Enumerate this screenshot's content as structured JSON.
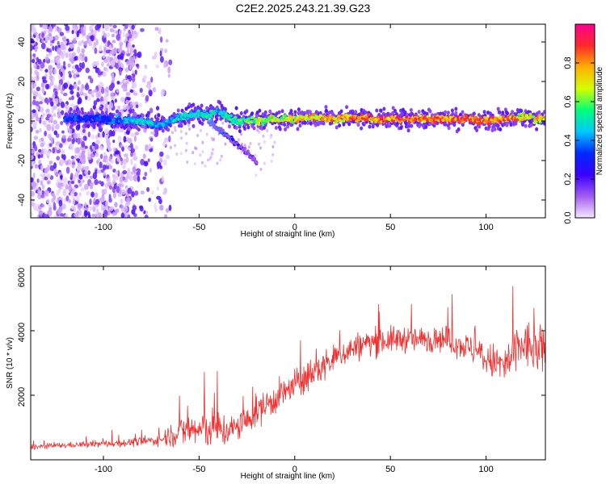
{
  "title": "C2E2.2025.243.21.39.G23",
  "colors": {
    "snr_line": "#f0302f",
    "spectrogram_low": "#e6d6ff",
    "spectrogram_mid": "#6a1ad8",
    "spectrogram_high": "#f81f3e",
    "frame": "#000000"
  },
  "chart_data": [
    {
      "type": "heatmap",
      "name": "spectrogram",
      "xlabel": "Height of straight line (km)",
      "ylabel": "Frequency (Hz)",
      "xlim": [
        -138,
        131
      ],
      "ylim": [
        -49,
        49
      ],
      "xticks": [
        -100,
        -50,
        0,
        50,
        100
      ],
      "yticks": [
        -40,
        -20,
        0,
        20,
        40
      ],
      "colorbar": {
        "label": "Normalized spectral amplitude",
        "range": [
          0,
          1
        ],
        "ticks": [
          0.0,
          0.2,
          0.4,
          0.6,
          0.8
        ],
        "colormap": [
          "#f5e8ff",
          "#a35cf0",
          "#3a00ff",
          "#0028ff",
          "#00c8ff",
          "#00ff7a",
          "#d4ff00",
          "#ffb000",
          "#ff2a2a",
          "#ff0090"
        ]
      },
      "ridge": {
        "description": "main signal track near 0 Hz",
        "x": [
          -100,
          -90,
          -80,
          -70,
          -60,
          -50,
          -45,
          -40,
          -35,
          -30,
          -20,
          -10,
          0,
          10,
          20,
          30,
          40,
          50,
          60,
          70,
          80,
          90,
          100,
          110,
          120,
          130
        ],
        "frequency": [
          1,
          0,
          0,
          -2,
          2,
          4,
          3,
          5,
          2,
          0,
          0,
          1,
          1,
          2,
          1,
          2,
          1,
          1,
          1,
          1,
          1,
          1,
          0,
          1,
          2,
          1
        ],
        "amplitude": [
          0.35,
          0.45,
          0.5,
          0.45,
          0.5,
          0.5,
          0.55,
          0.5,
          0.55,
          0.6,
          0.65,
          0.7,
          0.75,
          0.8,
          0.82,
          0.85,
          0.85,
          0.88,
          0.9,
          0.9,
          0.92,
          0.92,
          0.88,
          0.85,
          0.8,
          0.75
        ]
      },
      "branch": {
        "description": "secondary descending track",
        "x": [
          -45,
          -40,
          -35,
          -30,
          -25,
          -20
        ],
        "frequency": [
          0,
          -4,
          -8,
          -12,
          -16,
          -21
        ],
        "amplitude": [
          0.45,
          0.4,
          0.35,
          0.25,
          0.2,
          0.15
        ]
      },
      "noise_region": {
        "x_range": [
          -138,
          -65
        ],
        "density": "high"
      }
    },
    {
      "type": "line",
      "name": "snr",
      "xlabel": "Height of straight line (km)",
      "ylabel": "SNR (10 * v/v)",
      "xlim": [
        -138,
        131
      ],
      "ylim": [
        0,
        6000
      ],
      "xticks": [
        -100,
        -50,
        0,
        50,
        100
      ],
      "yticks": [
        2000,
        4000,
        6000
      ],
      "series": [
        {
          "name": "SNR",
          "x": [
            -138,
            -130,
            -120,
            -110,
            -100,
            -90,
            -80,
            -70,
            -65,
            -60,
            -55,
            -50,
            -45,
            -40,
            -35,
            -30,
            -25,
            -20,
            -15,
            -10,
            -5,
            0,
            5,
            10,
            15,
            20,
            25,
            30,
            35,
            40,
            45,
            50,
            55,
            60,
            65,
            70,
            75,
            80,
            85,
            90,
            95,
            100,
            105,
            110,
            115,
            120,
            125,
            131
          ],
          "mean": [
            400,
            420,
            450,
            470,
            500,
            520,
            560,
            620,
            800,
            850,
            950,
            900,
            1000,
            950,
            900,
            1000,
            1200,
            1500,
            1700,
            1900,
            2100,
            2300,
            2500,
            2700,
            2900,
            3100,
            3300,
            3450,
            3550,
            3650,
            3700,
            3700,
            3750,
            3750,
            3700,
            3750,
            3800,
            3700,
            3600,
            3500,
            3350,
            3100,
            3000,
            2900,
            3300,
            3600,
            3400,
            3300
          ],
          "spread": [
            150,
            150,
            160,
            170,
            200,
            220,
            260,
            300,
            700,
            800,
            1100,
            1000,
            1200,
            1100,
            900,
            800,
            800,
            900,
            900,
            900,
            900,
            900,
            900,
            900,
            900,
            800,
            800,
            800,
            800,
            800,
            800,
            750,
            750,
            750,
            750,
            750,
            750,
            750,
            750,
            800,
            800,
            900,
            1100,
            1300,
            1500,
            1400,
            1400,
            1400
          ]
        }
      ]
    }
  ]
}
